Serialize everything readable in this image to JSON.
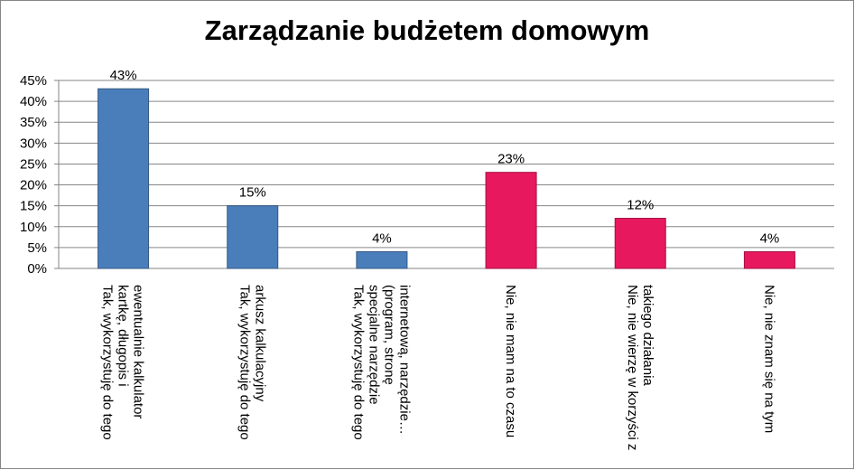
{
  "chart_data": {
    "type": "bar",
    "title": "Zarządzanie budżetem domowym",
    "categories": [
      "Tak, wykorzystuję do tego kartkę, długopis i ewentualnie kalkulator",
      "Tak, wykorzystuję do tego arkusz kalkulacyjny",
      "Tak, wykorzystuję do tego specjalne narzędzie (program, stronę internetową, narzędzie…",
      "Nie, nie mam na to czasu",
      "Nie, nie wierzę w korzyści z takiego działania",
      "Nie, nie znam się na tym"
    ],
    "values": [
      43,
      15,
      4,
      23,
      12,
      4
    ],
    "value_labels": [
      "43%",
      "15%",
      "4%",
      "23%",
      "12%",
      "4%"
    ],
    "colors": [
      "#4a7ebb",
      "#4a7ebb",
      "#4a7ebb",
      "#e8185f",
      "#e8185f",
      "#e8185f"
    ],
    "ylim": [
      0,
      45
    ],
    "yticks": [
      {
        "value": 0,
        "label": "0%"
      },
      {
        "value": 5,
        "label": "5%"
      },
      {
        "value": 10,
        "label": "10%"
      },
      {
        "value": 15,
        "label": "15%"
      },
      {
        "value": 20,
        "label": "20%"
      },
      {
        "value": 25,
        "label": "25%"
      },
      {
        "value": 30,
        "label": "30%"
      },
      {
        "value": 35,
        "label": "35%"
      },
      {
        "value": 40,
        "label": "40%"
      },
      {
        "value": 45,
        "label": "45%"
      }
    ],
    "grid": true
  }
}
